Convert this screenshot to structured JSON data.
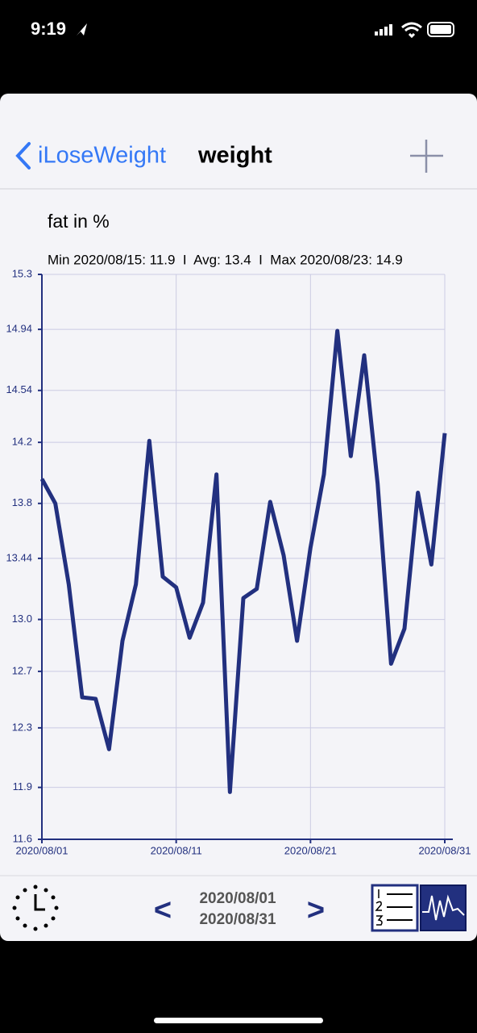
{
  "status_bar": {
    "time": "9:19"
  },
  "nav": {
    "back": "iLoseWeight",
    "title": "weight"
  },
  "chart_data": {
    "type": "line",
    "title": "fat in %",
    "subtitle": "Min 2020/08/15: 11.9  I  Avg: 13.4  I  Max 2020/08/23: 14.9",
    "x": [
      "2020/08/01",
      "2020/08/02",
      "2020/08/03",
      "2020/08/04",
      "2020/08/05",
      "2020/08/06",
      "2020/08/07",
      "2020/08/08",
      "2020/08/09",
      "2020/08/10",
      "2020/08/11",
      "2020/08/12",
      "2020/08/13",
      "2020/08/14",
      "2020/08/15",
      "2020/08/16",
      "2020/08/17",
      "2020/08/18",
      "2020/08/19",
      "2020/08/20",
      "2020/08/21",
      "2020/08/22",
      "2020/08/23",
      "2020/08/24",
      "2020/08/25",
      "2020/08/26",
      "2020/08/27",
      "2020/08/28",
      "2020/08/29",
      "2020/08/30",
      "2020/08/31"
    ],
    "values": [
      13.96,
      13.8,
      13.27,
      12.53,
      12.52,
      12.19,
      12.9,
      13.27,
      14.21,
      13.32,
      13.25,
      12.92,
      13.15,
      13.99,
      11.91,
      13.18,
      13.24,
      13.81,
      13.46,
      12.9,
      13.51,
      13.99,
      14.93,
      14.11,
      14.77,
      13.93,
      12.75,
      12.98,
      13.87,
      13.4,
      14.26
    ],
    "color": "#22307f",
    "xlim": [
      "2020/08/01",
      "2020/08/31"
    ],
    "xticks": [
      "2020/08/01",
      "2020/08/11",
      "2020/08/21",
      "2020/08/31"
    ],
    "ylim": [
      11.6,
      15.3
    ],
    "yticks": [
      11.6,
      {
        "value": 11.94,
        "label": "11.9"
      },
      {
        "value": 12.33,
        "label": "12.3"
      },
      12.7,
      {
        "value": 13.04,
        "label": "13.0"
      },
      13.44,
      13.8,
      14.2,
      14.54,
      14.94,
      15.3
    ],
    "grid": true
  },
  "footer": {
    "prev": "<",
    "range_start": "2020/08/01",
    "range_end": "2020/08/31",
    "next": ">"
  }
}
